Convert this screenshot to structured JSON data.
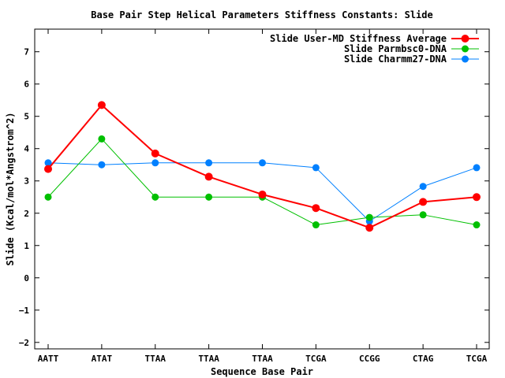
{
  "chart_data": {
    "type": "line",
    "title": "Base Pair Step Helical Parameters Stiffness Constants: Slide",
    "xlabel": "Sequence Base Pair",
    "ylabel": "Slide (Kcal/mol*Angstrom^2)",
    "categories": [
      "AATT",
      "ATAT",
      "TTAA",
      "TTAA",
      "TTAA",
      "TCGA",
      "CCGG",
      "CTAG",
      "TCGA"
    ],
    "ylim": [
      -2.2,
      7.7
    ],
    "yticks": [
      -2,
      -1,
      0,
      1,
      2,
      3,
      4,
      5,
      6,
      7
    ],
    "grid": false,
    "legend_position": "top-right",
    "series": [
      {
        "name": "Slide User-MD Stiffness Average",
        "color": "#ff0000",
        "values": [
          3.37,
          5.35,
          3.85,
          3.13,
          2.58,
          2.16,
          1.55,
          2.35,
          2.5
        ]
      },
      {
        "name": "Slide Parmbsc0-DNA",
        "color": "#00c000",
        "values": [
          2.5,
          4.3,
          2.5,
          2.5,
          2.5,
          1.64,
          1.87,
          1.95,
          1.64
        ]
      },
      {
        "name": "Slide Charmm27-DNA",
        "color": "#0080ff",
        "values": [
          3.56,
          3.5,
          3.56,
          3.56,
          3.56,
          3.41,
          1.75,
          2.83,
          3.41
        ]
      }
    ]
  }
}
